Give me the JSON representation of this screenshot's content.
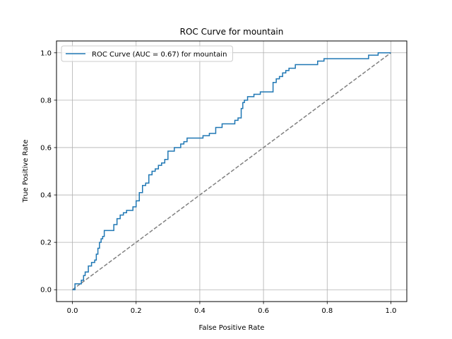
{
  "chart_data": {
    "type": "line",
    "title": "ROC Curve for mountain",
    "xlabel": "False Positive Rate",
    "ylabel": "True Positive Rate",
    "xlim": [
      -0.05,
      1.05
    ],
    "ylim": [
      -0.05,
      1.05
    ],
    "xticks": [
      0.0,
      0.2,
      0.4,
      0.6,
      0.8,
      1.0
    ],
    "yticks": [
      0.0,
      0.2,
      0.4,
      0.6,
      0.8,
      1.0
    ],
    "xtick_labels": [
      "0.0",
      "0.2",
      "0.4",
      "0.6",
      "0.8",
      "1.0"
    ],
    "ytick_labels": [
      "0.0",
      "0.2",
      "0.4",
      "0.6",
      "0.8",
      "1.0"
    ],
    "grid": true,
    "legend_position": "upper-left",
    "series": [
      {
        "name": "ROC Curve (AUC = 0.67) for mountain",
        "color": "#1f77b4",
        "style": "solid",
        "x": [
          0.0,
          0.008,
          0.008,
          0.015,
          0.015,
          0.028,
          0.028,
          0.035,
          0.035,
          0.04,
          0.04,
          0.05,
          0.05,
          0.06,
          0.06,
          0.07,
          0.07,
          0.075,
          0.075,
          0.08,
          0.08,
          0.085,
          0.085,
          0.09,
          0.09,
          0.095,
          0.095,
          0.1,
          0.1,
          0.11,
          0.11,
          0.13,
          0.13,
          0.14,
          0.14,
          0.15,
          0.15,
          0.16,
          0.16,
          0.17,
          0.17,
          0.19,
          0.19,
          0.2,
          0.2,
          0.21,
          0.21,
          0.22,
          0.22,
          0.23,
          0.23,
          0.24,
          0.24,
          0.25,
          0.25,
          0.26,
          0.26,
          0.27,
          0.27,
          0.28,
          0.28,
          0.29,
          0.29,
          0.3,
          0.3,
          0.32,
          0.32,
          0.34,
          0.34,
          0.35,
          0.35,
          0.36,
          0.36,
          0.41,
          0.41,
          0.43,
          0.43,
          0.45,
          0.45,
          0.47,
          0.47,
          0.51,
          0.51,
          0.52,
          0.52,
          0.53,
          0.53,
          0.535,
          0.535,
          0.54,
          0.54,
          0.55,
          0.55,
          0.57,
          0.57,
          0.59,
          0.59,
          0.63,
          0.63,
          0.64,
          0.64,
          0.65,
          0.65,
          0.66,
          0.66,
          0.67,
          0.67,
          0.68,
          0.68,
          0.7,
          0.7,
          0.71,
          0.71,
          0.77,
          0.77,
          0.79,
          0.79,
          0.93,
          0.93,
          0.96,
          0.96,
          1.0
        ],
        "y": [
          0.0,
          0.0,
          0.025,
          0.025,
          0.025,
          0.025,
          0.04,
          0.04,
          0.06,
          0.06,
          0.075,
          0.075,
          0.1,
          0.1,
          0.115,
          0.115,
          0.125,
          0.125,
          0.15,
          0.15,
          0.175,
          0.175,
          0.2,
          0.2,
          0.215,
          0.215,
          0.225,
          0.225,
          0.25,
          0.25,
          0.25,
          0.25,
          0.275,
          0.275,
          0.3,
          0.3,
          0.315,
          0.315,
          0.325,
          0.325,
          0.335,
          0.335,
          0.35,
          0.35,
          0.375,
          0.375,
          0.41,
          0.41,
          0.44,
          0.44,
          0.45,
          0.45,
          0.485,
          0.485,
          0.5,
          0.5,
          0.51,
          0.51,
          0.525,
          0.525,
          0.535,
          0.535,
          0.55,
          0.55,
          0.585,
          0.585,
          0.6,
          0.6,
          0.615,
          0.615,
          0.625,
          0.625,
          0.64,
          0.64,
          0.65,
          0.65,
          0.66,
          0.66,
          0.685,
          0.685,
          0.7,
          0.7,
          0.715,
          0.715,
          0.725,
          0.725,
          0.765,
          0.765,
          0.79,
          0.79,
          0.8,
          0.8,
          0.815,
          0.815,
          0.825,
          0.825,
          0.835,
          0.835,
          0.875,
          0.875,
          0.89,
          0.89,
          0.9,
          0.9,
          0.915,
          0.915,
          0.925,
          0.925,
          0.935,
          0.935,
          0.95,
          0.95,
          0.95,
          0.95,
          0.965,
          0.965,
          0.975,
          0.975,
          0.99,
          0.99,
          1.0,
          1.0
        ]
      },
      {
        "color": "#808080",
        "style": "dashed",
        "x": [
          0.0,
          1.0
        ],
        "y": [
          0.0,
          1.0
        ]
      }
    ]
  }
}
